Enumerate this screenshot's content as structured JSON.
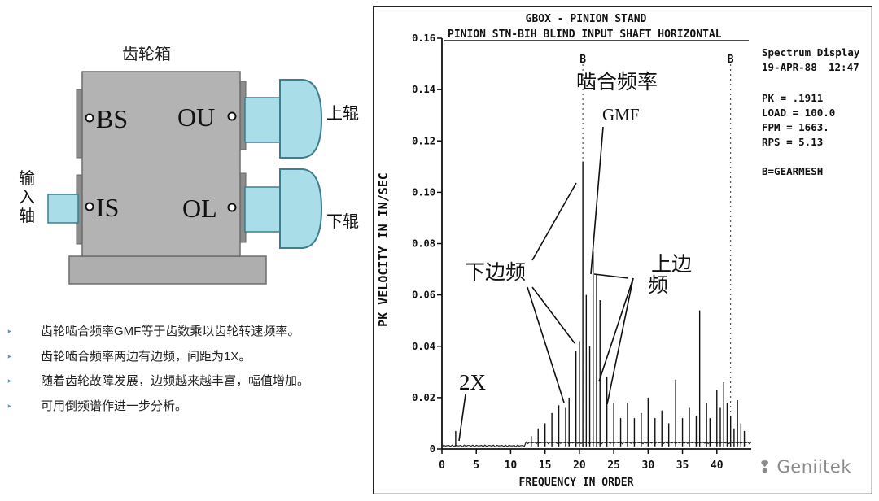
{
  "gearbox": {
    "title": "齿轮箱",
    "ports": {
      "bs": "BS",
      "ou": "OU",
      "is": "IS",
      "ol": "OL"
    },
    "labels": {
      "upper_roll": "上辊",
      "lower_roll": "下辊",
      "input_shaft": [
        "输",
        "入",
        "轴"
      ]
    },
    "colors": {
      "box": "#b3b3b3",
      "box_border": "#6d6d6d",
      "shaft": "#a9dde8",
      "shaft_border": "#3d7f8f"
    }
  },
  "bullets": [
    "齿轮啮合频率GMF等于齿数乘以齿轮转速频率。",
    "齿轮啮合频率两边有边频，间距为1X。",
    "随着齿轮故障发展，边频越来越丰富，幅值增加。",
    "可用倒频谱作进一步分析。"
  ],
  "spectrum": {
    "header": {
      "line1": "GBOX - PINION STAND",
      "line2": "PINION STN-BIH   BLIND INPUT SHAFT HORIZONTAL"
    },
    "info": {
      "display": "Spectrum Display",
      "date": "19-APR-88",
      "time": "12:47",
      "pk": "PK   =   .1911",
      "load": "LOAD = 100.0",
      "fpm": "FPM =  1663.",
      "rps": "RPS =    5.13",
      "legend": "B=GEARMESH"
    },
    "marker_b": "B",
    "annotations": {
      "gmf_cn": "啮合频率",
      "gmf_en": "GMF",
      "lower_sb": "下边频",
      "upper_sb_1": "上边",
      "upper_sb_2": "频",
      "two_x": "2X"
    }
  },
  "chart_data": {
    "type": "line",
    "xlabel": "FREQUENCY IN ORDER",
    "ylabel": "PK VELOCITY IN IN/SEC",
    "xlim": [
      0,
      45
    ],
    "ylim": [
      0,
      0.16
    ],
    "xticks": [
      "0",
      "5",
      "10",
      "15",
      "20",
      "25",
      "30",
      "35",
      "40"
    ],
    "yticks": [
      "0",
      "0.02",
      "0.04",
      "0.06",
      "0.08",
      "0.10",
      "0.12",
      "0.14",
      "0.16"
    ],
    "markers": [
      20.5,
      42.0
    ],
    "peaks": [
      {
        "x": 2.0,
        "y": 0.007
      },
      {
        "x": 13.0,
        "y": 0.005
      },
      {
        "x": 14.0,
        "y": 0.008
      },
      {
        "x": 15.0,
        "y": 0.01
      },
      {
        "x": 16.0,
        "y": 0.014
      },
      {
        "x": 17.0,
        "y": 0.017
      },
      {
        "x": 18.0,
        "y": 0.016
      },
      {
        "x": 18.5,
        "y": 0.02
      },
      {
        "x": 19.5,
        "y": 0.038
      },
      {
        "x": 20.0,
        "y": 0.042
      },
      {
        "x": 20.5,
        "y": 0.112
      },
      {
        "x": 21.0,
        "y": 0.06
      },
      {
        "x": 21.5,
        "y": 0.04
      },
      {
        "x": 22.0,
        "y": 0.077
      },
      {
        "x": 22.5,
        "y": 0.068
      },
      {
        "x": 23.0,
        "y": 0.058
      },
      {
        "x": 24.0,
        "y": 0.028
      },
      {
        "x": 25.0,
        "y": 0.018
      },
      {
        "x": 26.0,
        "y": 0.012
      },
      {
        "x": 27.0,
        "y": 0.018
      },
      {
        "x": 28.0,
        "y": 0.012
      },
      {
        "x": 29.0,
        "y": 0.014
      },
      {
        "x": 30.0,
        "y": 0.02
      },
      {
        "x": 31.0,
        "y": 0.012
      },
      {
        "x": 32.0,
        "y": 0.015
      },
      {
        "x": 33.0,
        "y": 0.01
      },
      {
        "x": 34.0,
        "y": 0.027
      },
      {
        "x": 35.0,
        "y": 0.012
      },
      {
        "x": 36.0,
        "y": 0.016
      },
      {
        "x": 37.0,
        "y": 0.013
      },
      {
        "x": 37.5,
        "y": 0.054
      },
      {
        "x": 38.5,
        "y": 0.018
      },
      {
        "x": 39.0,
        "y": 0.012
      },
      {
        "x": 40.0,
        "y": 0.023
      },
      {
        "x": 40.5,
        "y": 0.016
      },
      {
        "x": 41.0,
        "y": 0.026
      },
      {
        "x": 41.5,
        "y": 0.018
      },
      {
        "x": 42.0,
        "y": 0.013
      },
      {
        "x": 42.5,
        "y": 0.008
      },
      {
        "x": 43.0,
        "y": 0.019
      },
      {
        "x": 43.5,
        "y": 0.01
      },
      {
        "x": 44.0,
        "y": 0.007
      }
    ]
  },
  "watermark": "Geniitek"
}
